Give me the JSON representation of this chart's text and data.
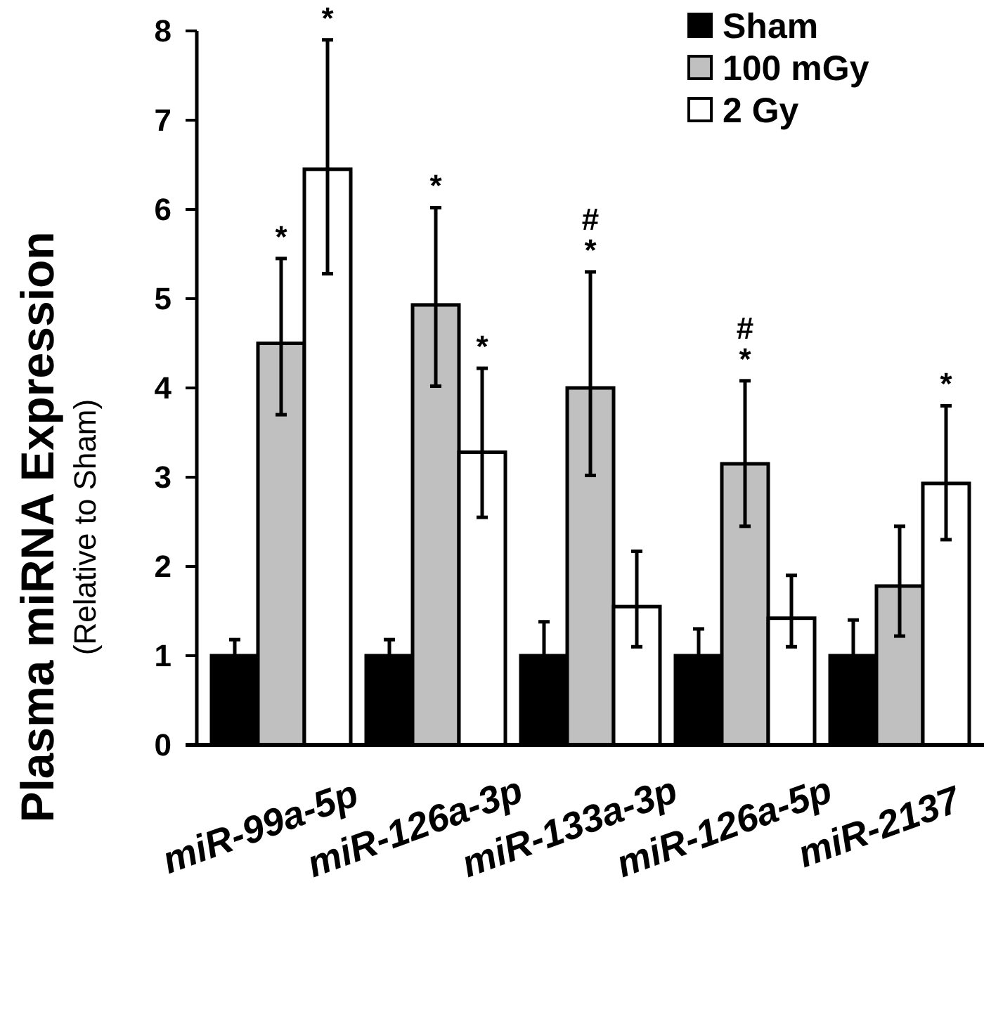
{
  "chart_data": {
    "type": "bar",
    "ylabel": "Plasma miRNA Expression\n(Relative to Sham)",
    "categories": [
      "miR-99a-5p",
      "miR-126a-3p",
      "miR-133a-3p",
      "miR-126a-5p",
      "miR-2137"
    ],
    "series": [
      {
        "name": "Sham",
        "color": "#000000",
        "values": [
          1,
          1,
          1,
          1,
          1
        ],
        "errors": [
          [
            1,
            1.18
          ],
          [
            1,
            1.18
          ],
          [
            1,
            1.38
          ],
          [
            1,
            1.3
          ],
          [
            1,
            1.4
          ]
        ]
      },
      {
        "name": "100 mGy",
        "color": "#c0c0c0",
        "values": [
          4.5,
          4.93,
          4.0,
          3.15,
          1.78
        ],
        "errors": [
          [
            3.7,
            5.45
          ],
          [
            4.02,
            6.02
          ],
          [
            3.02,
            5.3
          ],
          [
            2.45,
            4.08
          ],
          [
            1.22,
            2.45
          ]
        ]
      },
      {
        "name": "2 Gy",
        "color": "#ffffff",
        "values": [
          6.45,
          3.28,
          1.55,
          1.42,
          2.93
        ],
        "errors": [
          [
            5.28,
            7.9
          ],
          [
            2.55,
            4.22
          ],
          [
            1.1,
            2.17
          ],
          [
            1.1,
            1.9
          ],
          [
            2.3,
            3.8
          ]
        ]
      }
    ],
    "annotations": [
      "*",
      "*",
      "*",
      "*",
      "*",
      "#",
      "*",
      "#",
      "*"
    ],
    "ylim": [
      0,
      8
    ],
    "yticks": [
      0,
      1,
      2,
      3,
      4,
      5,
      6,
      7,
      8
    ],
    "grid": false,
    "legend": "top right"
  }
}
